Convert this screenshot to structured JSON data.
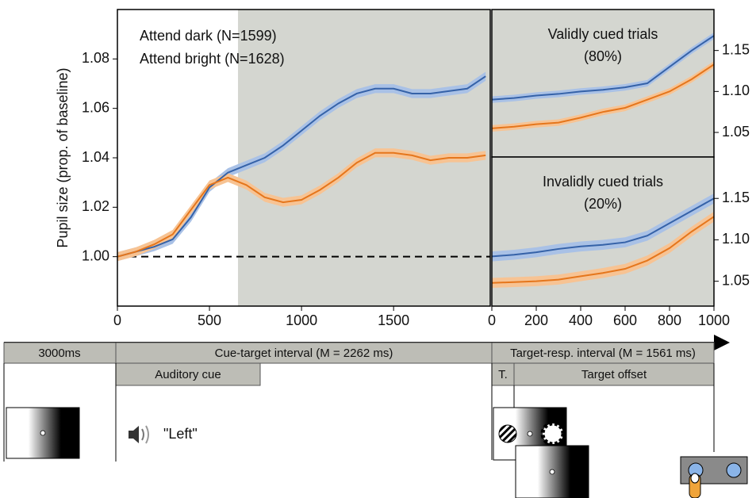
{
  "chart_data": [
    {
      "type": "line",
      "y_label": "Pupil size (prop. of baseline)",
      "x": [
        0,
        100,
        200,
        300,
        400,
        500,
        600,
        700,
        800,
        900,
        1000,
        1100,
        1200,
        1300,
        1400,
        1500,
        1600,
        1700,
        1800,
        1900,
        2000
      ],
      "series": [
        {
          "name": "Attend dark (N=1599)",
          "color": "#3562a8",
          "band_color": "#a9c1e6",
          "error": 0.0018,
          "values": [
            1.0,
            1.002,
            1.004,
            1.007,
            1.016,
            1.028,
            1.034,
            1.037,
            1.04,
            1.045,
            1.051,
            1.057,
            1.062,
            1.066,
            1.068,
            1.068,
            1.066,
            1.066,
            1.067,
            1.068,
            1.073
          ]
        },
        {
          "name": "Attend bright (N=1628)",
          "color": "#e5761c",
          "band_color": "#f7c393",
          "error": 0.0018,
          "values": [
            1.0,
            1.002,
            1.005,
            1.009,
            1.019,
            1.029,
            1.032,
            1.029,
            1.024,
            1.022,
            1.023,
            1.027,
            1.032,
            1.038,
            1.042,
            1.042,
            1.041,
            1.039,
            1.04,
            1.04,
            1.041
          ]
        }
      ],
      "xlim": [
        0,
        2025
      ],
      "xticks": [
        0,
        500,
        1000,
        1500
      ],
      "ylim": [
        0.98,
        1.1
      ],
      "yticks": [
        {
          "value": 1,
          "label": "1.00"
        },
        1.02,
        1.04,
        1.06,
        1.08
      ],
      "reference_line": 1,
      "shade_from": 655,
      "shade_color": "#d4d6d0",
      "legend": "upper left"
    },
    {
      "type": "line",
      "title": "Validly cued trials",
      "subtitle": "(80%)",
      "x": [
        0,
        100,
        200,
        300,
        400,
        500,
        600,
        700,
        800,
        900,
        1000
      ],
      "series": [
        {
          "color": "#3562a8",
          "band_color": "#a9c1e6",
          "error": 0.004,
          "values": [
            1.09,
            1.092,
            1.095,
            1.097,
            1.1,
            1.102,
            1.105,
            1.11,
            1.13,
            1.15,
            1.168
          ]
        },
        {
          "color": "#e5761c",
          "band_color": "#f7c393",
          "error": 0.004,
          "values": [
            1.055,
            1.057,
            1.06,
            1.062,
            1.068,
            1.075,
            1.08,
            1.09,
            1.1,
            1.115,
            1.133
          ]
        }
      ],
      "xlim": [
        0,
        1000
      ],
      "ylim": [
        1.02,
        1.2
      ],
      "yticks": [
        1.05,
        {
          "value": 1.1,
          "label": "1.10"
        },
        1.15
      ],
      "shade_from": 0,
      "shade_color": "#d4d6d0"
    },
    {
      "type": "line",
      "title": "Invalidly cued trials",
      "subtitle": "(20%)",
      "x": [
        0,
        100,
        200,
        300,
        400,
        500,
        600,
        700,
        800,
        900,
        1000
      ],
      "series": [
        {
          "color": "#3562a8",
          "band_color": "#a9c1e6",
          "error": 0.006,
          "values": [
            1.08,
            1.082,
            1.085,
            1.089,
            1.092,
            1.094,
            1.097,
            1.105,
            1.12,
            1.135,
            1.15
          ]
        },
        {
          "color": "#e5761c",
          "band_color": "#f7c393",
          "error": 0.006,
          "values": [
            1.048,
            1.049,
            1.05,
            1.052,
            1.056,
            1.06,
            1.065,
            1.075,
            1.09,
            1.11,
            1.128
          ]
        }
      ],
      "xlim": [
        0,
        1000
      ],
      "xticks": [
        0,
        200,
        400,
        600,
        800,
        1000
      ],
      "ylim": [
        1.02,
        1.2
      ],
      "yticks": [
        1.05,
        {
          "value": 1.1,
          "label": "1.10"
        },
        1.15
      ],
      "shade_from": 0,
      "shade_color": "#d4d6d0"
    }
  ],
  "timeline": {
    "baseline": "3000ms",
    "cue_target": "Cue-target interval (M = 2262 ms)",
    "target_resp": "Target-resp. interval (M = 1561 ms)",
    "auditory_cue": "Auditory cue",
    "target_short": "T.",
    "target_offset": "Target offset",
    "speech": "\"Left\""
  }
}
